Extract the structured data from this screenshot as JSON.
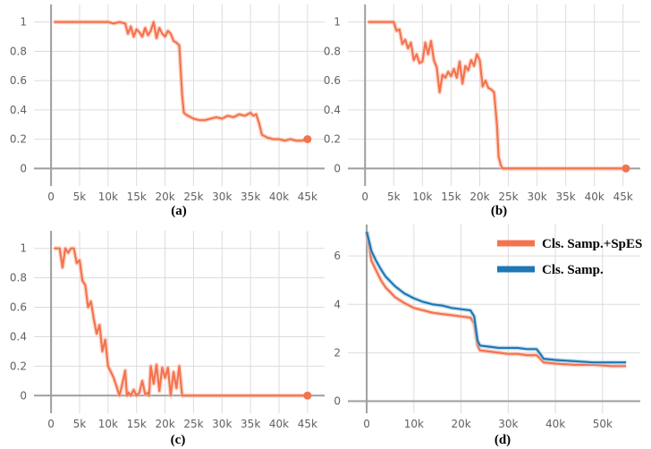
{
  "colors": {
    "orange": "#f4734f",
    "orange_light": "#f9b8a3",
    "blue": "#1f77b4",
    "blue_light": "#a6cee3",
    "grid": "#dcdcdc",
    "axis": "#9e9e9e"
  },
  "chart_data": [
    {
      "type": "line",
      "caption": "(a)",
      "x_ticks": [
        "0",
        "5k",
        "10k",
        "15k",
        "20k",
        "25k",
        "30k",
        "35k",
        "40k",
        "45k"
      ],
      "y_ticks": [
        "0",
        "0.2",
        "0.4",
        "0.6",
        "0.8",
        "1"
      ],
      "xlim": [
        -3000,
        48000
      ],
      "ylim": [
        -0.12,
        1.12
      ],
      "series": [
        {
          "color": "orange",
          "x": [
            500,
            5000,
            10000,
            11000,
            12000,
            13000,
            13500,
            14000,
            14500,
            15000,
            15500,
            16000,
            16500,
            17000,
            17500,
            18000,
            18500,
            19000,
            19500,
            20000,
            20500,
            21000,
            21500,
            22000,
            22500,
            23000,
            23300,
            23600,
            24000,
            25000,
            26000,
            27000,
            28000,
            29000,
            30000,
            31000,
            32000,
            33000,
            34000,
            35000,
            35500,
            36000,
            36500,
            37000,
            38000,
            39000,
            40000,
            41000,
            42000,
            43000,
            44000,
            45000
          ],
          "y": [
            1,
            1,
            1,
            0.99,
            1,
            0.99,
            0.92,
            0.97,
            0.9,
            0.95,
            0.93,
            0.9,
            0.96,
            0.91,
            0.94,
            1,
            0.89,
            0.96,
            0.92,
            0.9,
            0.94,
            0.92,
            0.87,
            0.86,
            0.84,
            0.5,
            0.38,
            0.37,
            0.36,
            0.34,
            0.33,
            0.33,
            0.34,
            0.35,
            0.34,
            0.36,
            0.35,
            0.37,
            0.36,
            0.38,
            0.36,
            0.37,
            0.31,
            0.23,
            0.21,
            0.2,
            0.2,
            0.19,
            0.2,
            0.19,
            0.19,
            0.2
          ]
        }
      ],
      "endpoint": [
        45000,
        0.2
      ]
    },
    {
      "type": "line",
      "caption": "(b)",
      "x_ticks": [
        "0",
        "5k",
        "10k",
        "15k",
        "20k",
        "25k",
        "30k",
        "35k",
        "40k",
        "45k"
      ],
      "y_ticks": [
        "0",
        "0.2",
        "0.4",
        "0.6",
        "0.8",
        "1"
      ],
      "xlim": [
        -3000,
        48000
      ],
      "ylim": [
        -0.12,
        1.12
      ],
      "series": [
        {
          "color": "orange",
          "x": [
            500,
            3000,
            5000,
            5500,
            6000,
            6500,
            7000,
            7500,
            8000,
            8500,
            9000,
            9500,
            10000,
            10500,
            11000,
            11500,
            12000,
            12500,
            13000,
            13500,
            14000,
            14500,
            15000,
            15500,
            16000,
            16500,
            17000,
            17500,
            18000,
            18500,
            19000,
            19500,
            20000,
            20500,
            21000,
            21500,
            22000,
            22500,
            23000,
            23300,
            23700,
            24000,
            25000,
            30000,
            35000,
            40000,
            45000
          ],
          "y": [
            1,
            1,
            1,
            0.94,
            0.95,
            0.85,
            0.88,
            0.82,
            0.86,
            0.74,
            0.78,
            0.72,
            0.73,
            0.86,
            0.78,
            0.87,
            0.74,
            0.69,
            0.52,
            0.64,
            0.62,
            0.66,
            0.63,
            0.68,
            0.62,
            0.73,
            0.58,
            0.7,
            0.67,
            0.74,
            0.7,
            0.78,
            0.74,
            0.56,
            0.6,
            0.55,
            0.54,
            0.52,
            0.3,
            0.08,
            0.02,
            0,
            0,
            0,
            0,
            0,
            0
          ]
        }
      ],
      "endpoint": [
        45500,
        0
      ]
    },
    {
      "type": "line",
      "caption": "(c)",
      "x_ticks": [
        "0",
        "5k",
        "10k",
        "15k",
        "20k",
        "25k",
        "30k",
        "35k",
        "40k",
        "45k"
      ],
      "y_ticks": [
        "0",
        "0.2",
        "0.4",
        "0.6",
        "0.8",
        "1"
      ],
      "xlim": [
        -3000,
        48000
      ],
      "ylim": [
        -0.12,
        1.12
      ],
      "series": [
        {
          "color": "orange",
          "x": [
            500,
            1500,
            2000,
            2500,
            3000,
            3500,
            4000,
            4500,
            5000,
            5500,
            6000,
            6500,
            7000,
            7500,
            8000,
            8500,
            9000,
            9500,
            10000,
            10500,
            11000,
            11500,
            12000,
            12500,
            13000,
            13300,
            13600,
            14000,
            14500,
            15000,
            15500,
            16000,
            16500,
            17000,
            17200,
            17500,
            18000,
            18500,
            19000,
            19500,
            20000,
            20500,
            21000,
            21500,
            22000,
            22500,
            23000,
            25000,
            30000,
            35000,
            40000,
            45000
          ],
          "y": [
            1,
            1,
            0.87,
            1,
            0.97,
            1,
            1,
            0.9,
            0.92,
            0.78,
            0.75,
            0.6,
            0.64,
            0.52,
            0.42,
            0.48,
            0.3,
            0.38,
            0.2,
            0.16,
            0.12,
            0.06,
            0,
            0.08,
            0.17,
            0,
            0.02,
            0,
            0.04,
            0,
            0.02,
            0.1,
            0.01,
            0.02,
            0,
            0.2,
            0.08,
            0.21,
            0.03,
            0.19,
            0.12,
            0.19,
            0,
            0.16,
            0.05,
            0.2,
            0,
            0,
            0,
            0,
            0,
            0
          ]
        }
      ],
      "endpoint": [
        45000,
        0
      ]
    },
    {
      "type": "line",
      "caption": "(d)",
      "x_ticks": [
        "0",
        "10k",
        "20k",
        "30k",
        "40k",
        "50k"
      ],
      "y_ticks": [
        "0",
        "2",
        "4",
        "6"
      ],
      "xlim": [
        -4000,
        58000
      ],
      "ylim": [
        -0.5,
        7.3
      ],
      "legend": "top-right",
      "series": [
        {
          "name": "Cls. Samp.+SpES",
          "color": "orange",
          "x": [
            0,
            1000,
            2000,
            3000,
            4000,
            6000,
            8000,
            10000,
            12000,
            14000,
            16000,
            18000,
            20000,
            22000,
            22800,
            23500,
            24000,
            26000,
            28000,
            30000,
            32000,
            34000,
            36000,
            36800,
            37500,
            40000,
            44000,
            48000,
            52000,
            55000
          ],
          "y": [
            7,
            5.8,
            5.4,
            5.0,
            4.7,
            4.3,
            4.05,
            3.85,
            3.75,
            3.65,
            3.6,
            3.55,
            3.5,
            3.45,
            3.2,
            2.3,
            2.1,
            2.05,
            2.0,
            1.95,
            1.95,
            1.9,
            1.9,
            1.75,
            1.6,
            1.55,
            1.5,
            1.5,
            1.45,
            1.45
          ]
        },
        {
          "name": "Cls. Samp.",
          "color": "blue",
          "x": [
            0,
            1000,
            2000,
            3000,
            4000,
            6000,
            8000,
            10000,
            12000,
            14000,
            16000,
            18000,
            20000,
            22000,
            22800,
            23500,
            24000,
            26000,
            28000,
            30000,
            32000,
            34000,
            36000,
            36800,
            37500,
            40000,
            44000,
            48000,
            52000,
            55000
          ],
          "y": [
            7,
            6.2,
            5.8,
            5.45,
            5.15,
            4.75,
            4.45,
            4.25,
            4.1,
            4.0,
            3.95,
            3.85,
            3.8,
            3.75,
            3.5,
            2.5,
            2.3,
            2.25,
            2.2,
            2.2,
            2.2,
            2.15,
            2.15,
            1.95,
            1.75,
            1.7,
            1.65,
            1.6,
            1.6,
            1.6
          ]
        }
      ]
    }
  ]
}
